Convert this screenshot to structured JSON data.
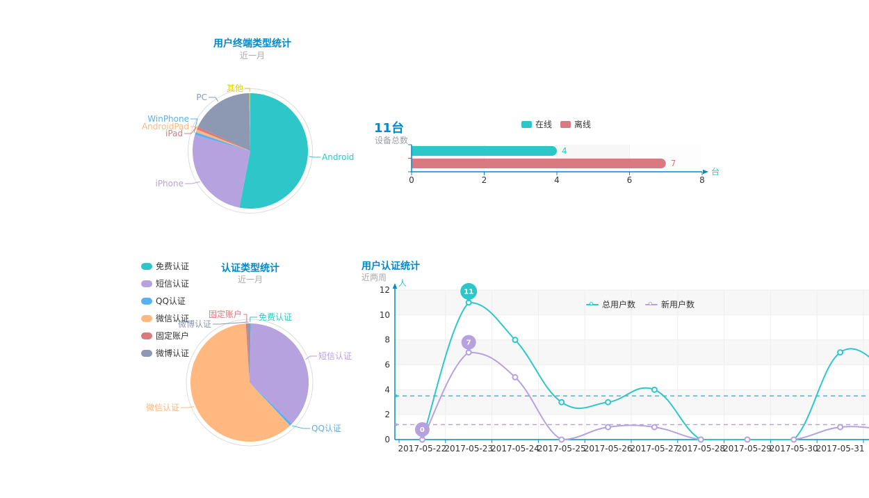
{
  "page": {
    "background": "#ffffff"
  },
  "theme": {
    "title_color": "#008acd",
    "subtitle_color": "#aaaaaa",
    "axis_line_color": "#008acd",
    "tick_label_color": "#333333",
    "axis_name_color": "#2ec7c9",
    "grid_line_color": "#eeeeee",
    "band_gray": "#f7f7f7",
    "band_light": "#fdfdfd",
    "ring_color": "#dcdcdc"
  },
  "chart_data": [
    {
      "id": "terminal-type-pie",
      "type": "pie",
      "title": "用户终端类型统计",
      "subtitle": "近一月",
      "categories": [
        "Android",
        "iPhone",
        "WinPhone",
        "AndroidPad",
        "iPad",
        "PC",
        "其他"
      ],
      "values": [
        53,
        26.5,
        0.8,
        0.8,
        0.8,
        17.8,
        0.3
      ],
      "unit": "%",
      "values_note": "estimated share from arc angles",
      "colors": [
        "#2ec7c9",
        "#b6a2de",
        "#5ab1ef",
        "#ffb980",
        "#d87a80",
        "#8d98b3",
        "#e5cf0d"
      ]
    },
    {
      "id": "device-total-bar",
      "type": "bar",
      "title": "11台",
      "subtitle": "设备总数",
      "legend": [
        "在线",
        "离线"
      ],
      "categories": [
        "在线",
        "离线"
      ],
      "values": [
        4,
        7
      ],
      "value_labels": [
        "4",
        "7"
      ],
      "colors": [
        "#2ec7c9",
        "#d87a80"
      ],
      "xlabel": "台",
      "xlim": [
        0,
        8
      ],
      "xticks": [
        0,
        2,
        4,
        6,
        8
      ]
    },
    {
      "id": "auth-type-pie",
      "type": "pie",
      "title": "认证类型统计",
      "subtitle": "近一月",
      "legend": [
        "免费认证",
        "短信认证",
        "QQ认证",
        "微信认证",
        "固定账户",
        "微博认证"
      ],
      "categories": [
        "免费认证",
        "短信认证",
        "QQ认证",
        "微信认证",
        "固定账户",
        "微博认证"
      ],
      "values": [
        0.3,
        37,
        0.7,
        61,
        0.5,
        0.5
      ],
      "unit": "%",
      "values_note": "estimated share from arc angles",
      "colors": [
        "#2ec7c9",
        "#b6a2de",
        "#5ab1ef",
        "#ffb980",
        "#d87a80",
        "#8d98b3"
      ]
    },
    {
      "id": "user-auth-line",
      "type": "line",
      "title": "用户认证统计",
      "subtitle": "近两周",
      "ylabel": "人",
      "ylim": [
        0,
        12
      ],
      "yticks": [
        0,
        2,
        4,
        6,
        8,
        10,
        12
      ],
      "x": [
        "2017-05-22",
        "2017-05-23",
        "2017-05-24",
        "2017-05-25",
        "2017-05-26",
        "2017-05-27",
        "2017-05-28",
        "2017-05-29",
        "2017-05-30",
        "2017-05-31"
      ],
      "legend": [
        "总用户数",
        "新用户数"
      ],
      "series": [
        {
          "name": "总用户数",
          "color": "#2ec7c9",
          "values": [
            0,
            11,
            8,
            3,
            3,
            4,
            0,
            0,
            0,
            7
          ],
          "average_line": 3.5,
          "markpoints": [
            {
              "label": "11",
              "index": 1
            }
          ],
          "next_value_estimate": 5.5
        },
        {
          "name": "新用户数",
          "color": "#b6a2de",
          "values": [
            0,
            7,
            5,
            0,
            1,
            1,
            0,
            0,
            0,
            1
          ],
          "average_line": 1.2,
          "markpoints": [
            {
              "label": "7",
              "index": 1
            },
            {
              "label": "0",
              "index": 0
            }
          ],
          "next_value_estimate": 0.8
        }
      ]
    }
  ]
}
